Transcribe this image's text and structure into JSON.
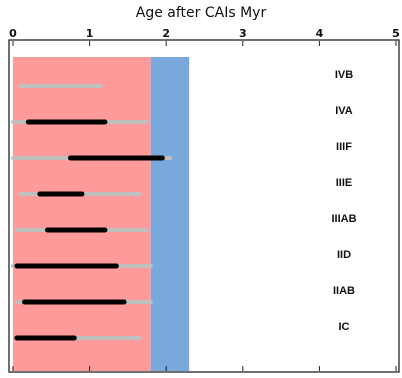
{
  "chart_data": {
    "type": "bar",
    "title": "Age after CAIs Myr",
    "xlim": [
      0,
      5
    ],
    "x_ticks": [
      0,
      1,
      2,
      3,
      4,
      5
    ],
    "shaded_bands": [
      {
        "from": 0,
        "to": 1.8,
        "color": "#ff9a9a"
      },
      {
        "from": 1.8,
        "to": 2.3,
        "color": "#78a8dc"
      }
    ],
    "categories": [
      "IVB",
      "IVA",
      "IIIF",
      "IIIE",
      "IIIAB",
      "IID",
      "IIAB",
      "IC"
    ],
    "series": [
      {
        "color": "#c0c0c0",
        "ranges": [
          [
            0.1,
            1.15
          ],
          [
            0.0,
            1.75
          ],
          [
            0.0,
            2.05
          ],
          [
            0.1,
            1.65
          ],
          [
            0.05,
            1.75
          ],
          [
            0.0,
            1.8
          ],
          [
            0.05,
            1.8
          ],
          [
            0.05,
            1.65
          ]
        ]
      },
      {
        "color": "#000000",
        "ranges": [
          null,
          [
            0.2,
            1.2
          ],
          [
            0.75,
            1.95
          ],
          [
            0.35,
            0.9
          ],
          [
            0.45,
            1.2
          ],
          [
            0.05,
            1.35
          ],
          [
            0.15,
            1.45
          ],
          [
            0.05,
            0.8
          ]
        ]
      }
    ],
    "grid": false,
    "legend": "none"
  }
}
